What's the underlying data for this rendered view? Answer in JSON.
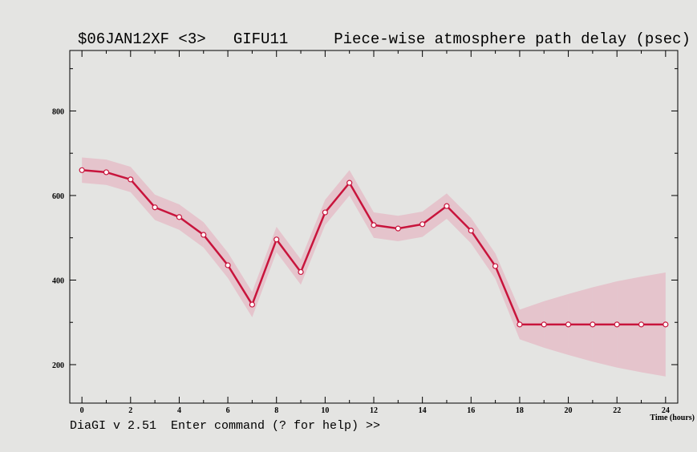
{
  "chart_data": {
    "type": "line",
    "title": "$06JAN12XF <3>   GIFU11     Piece-wise atmosphere path delay (psec)",
    "xlabel": "Time (hours)",
    "x": [
      0,
      1,
      2,
      3,
      4,
      5,
      6,
      7,
      8,
      9,
      10,
      11,
      12,
      13,
      14,
      15,
      16,
      17,
      18,
      19,
      20,
      21,
      22,
      23,
      24
    ],
    "series": [
      {
        "color": "#c8143c",
        "band_color": "#e6a9b9",
        "values": [
          660,
          655,
          638,
          572,
          549,
          507,
          435,
          342,
          496,
          419,
          560,
          630,
          530,
          522,
          532,
          575,
          517,
          433,
          295,
          295,
          295,
          295,
          295,
          295,
          295
        ],
        "errors": [
          30,
          30,
          30,
          30,
          30,
          30,
          30,
          30,
          30,
          30,
          30,
          30,
          30,
          30,
          30,
          30,
          30,
          30,
          35,
          55,
          72,
          88,
          102,
          113,
          123
        ]
      }
    ],
    "xlim": [
      -0.5,
      24.5
    ],
    "ylim": [
      109,
      943
    ],
    "xticks": [
      0,
      2,
      4,
      6,
      8,
      10,
      12,
      14,
      16,
      18,
      20,
      22,
      24
    ],
    "xminorticks": [
      1,
      3,
      5,
      7,
      9,
      11,
      13,
      15,
      17,
      19,
      21,
      23
    ],
    "yticks": [
      200,
      400,
      600,
      800
    ],
    "yminorticks": [
      300,
      500,
      700,
      900
    ]
  },
  "command_line": "DiaGI v 2.51  Enter command (? for help) >>"
}
